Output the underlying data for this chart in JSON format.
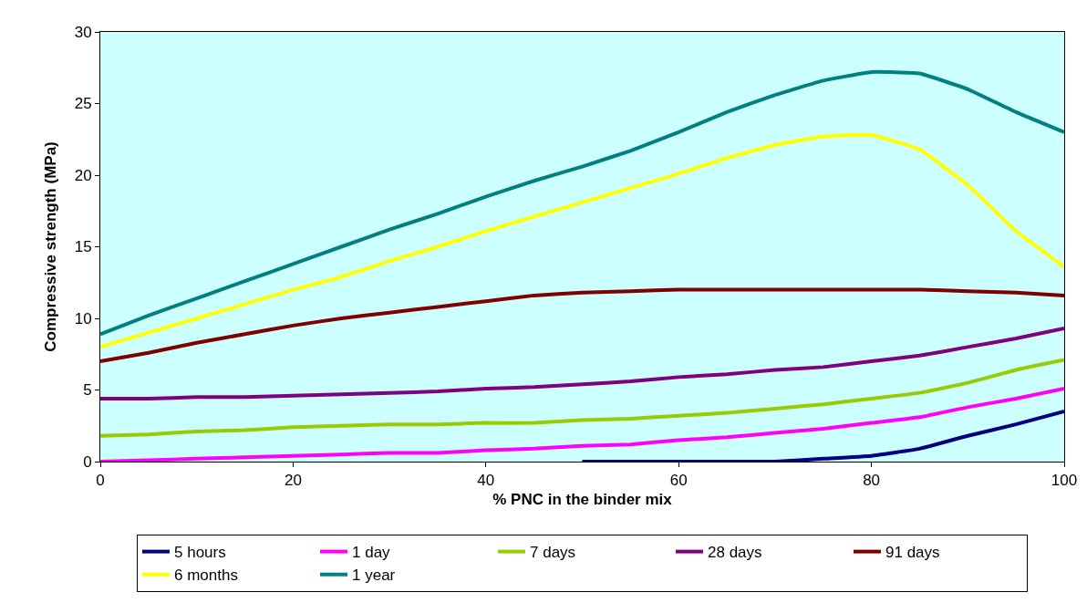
{
  "chart_data": {
    "type": "line",
    "xlabel": "% PNC in the binder mix",
    "ylabel": "Compressive strength (MPa)",
    "x": [
      0,
      5,
      10,
      15,
      20,
      25,
      30,
      35,
      40,
      45,
      50,
      55,
      60,
      65,
      70,
      75,
      80,
      85,
      90,
      95,
      100
    ],
    "xlim": [
      0,
      100
    ],
    "xticks": [
      0,
      20,
      40,
      60,
      80,
      100
    ],
    "ylim": [
      0,
      30
    ],
    "yticks": [
      0,
      5,
      10,
      15,
      20,
      25,
      30
    ],
    "grid": false,
    "legend": "bottom",
    "marker": "none",
    "line_style": "solid",
    "series": [
      {
        "name": "5 hours",
        "color": "#000080",
        "values": [
          null,
          null,
          null,
          null,
          null,
          null,
          null,
          null,
          null,
          null,
          0,
          0,
          0,
          0,
          0,
          0.2,
          0.4,
          0.9,
          1.8,
          2.6,
          3.5
        ]
      },
      {
        "name": "1 day",
        "color": "#ff00ff",
        "values": [
          0,
          0.1,
          0.2,
          0.3,
          0.4,
          0.5,
          0.6,
          0.6,
          0.8,
          0.9,
          1.1,
          1.2,
          1.5,
          1.7,
          2.0,
          2.3,
          2.7,
          3.1,
          3.8,
          4.4,
          5.1
        ]
      },
      {
        "name": "7 days",
        "color": "#99cc00",
        "values": [
          1.8,
          1.9,
          2.1,
          2.2,
          2.4,
          2.5,
          2.6,
          2.6,
          2.7,
          2.7,
          2.9,
          3.0,
          3.2,
          3.4,
          3.7,
          4.0,
          4.4,
          4.8,
          5.5,
          6.4,
          7.1
        ]
      },
      {
        "name": "28 days",
        "color": "#800080",
        "values": [
          4.4,
          4.4,
          4.5,
          4.5,
          4.6,
          4.7,
          4.8,
          4.9,
          5.1,
          5.2,
          5.4,
          5.6,
          5.9,
          6.1,
          6.4,
          6.6,
          7.0,
          7.4,
          8.0,
          8.6,
          9.3
        ]
      },
      {
        "name": "91 days",
        "color": "#800000",
        "values": [
          7.0,
          7.6,
          8.3,
          8.9,
          9.5,
          10.0,
          10.4,
          10.8,
          11.2,
          11.6,
          11.8,
          11.9,
          12.0,
          12.0,
          12.0,
          12.0,
          12.0,
          12.0,
          11.9,
          11.8,
          11.6
        ]
      },
      {
        "name": "6 months",
        "color": "#ffff00",
        "values": [
          8.0,
          9.0,
          10.0,
          11.0,
          12.0,
          12.9,
          14.0,
          15.0,
          16.1,
          17.1,
          18.1,
          19.1,
          20.1,
          21.2,
          22.1,
          22.7,
          22.8,
          21.8,
          19.3,
          16.1,
          13.6
        ]
      },
      {
        "name": "1 year",
        "color": "#008080",
        "values": [
          8.9,
          10.2,
          11.4,
          12.6,
          13.8,
          15.0,
          16.2,
          17.3,
          18.5,
          19.6,
          20.6,
          21.7,
          23.0,
          24.4,
          25.6,
          26.6,
          27.2,
          27.1,
          26.0,
          24.4,
          23.0
        ]
      }
    ]
  }
}
